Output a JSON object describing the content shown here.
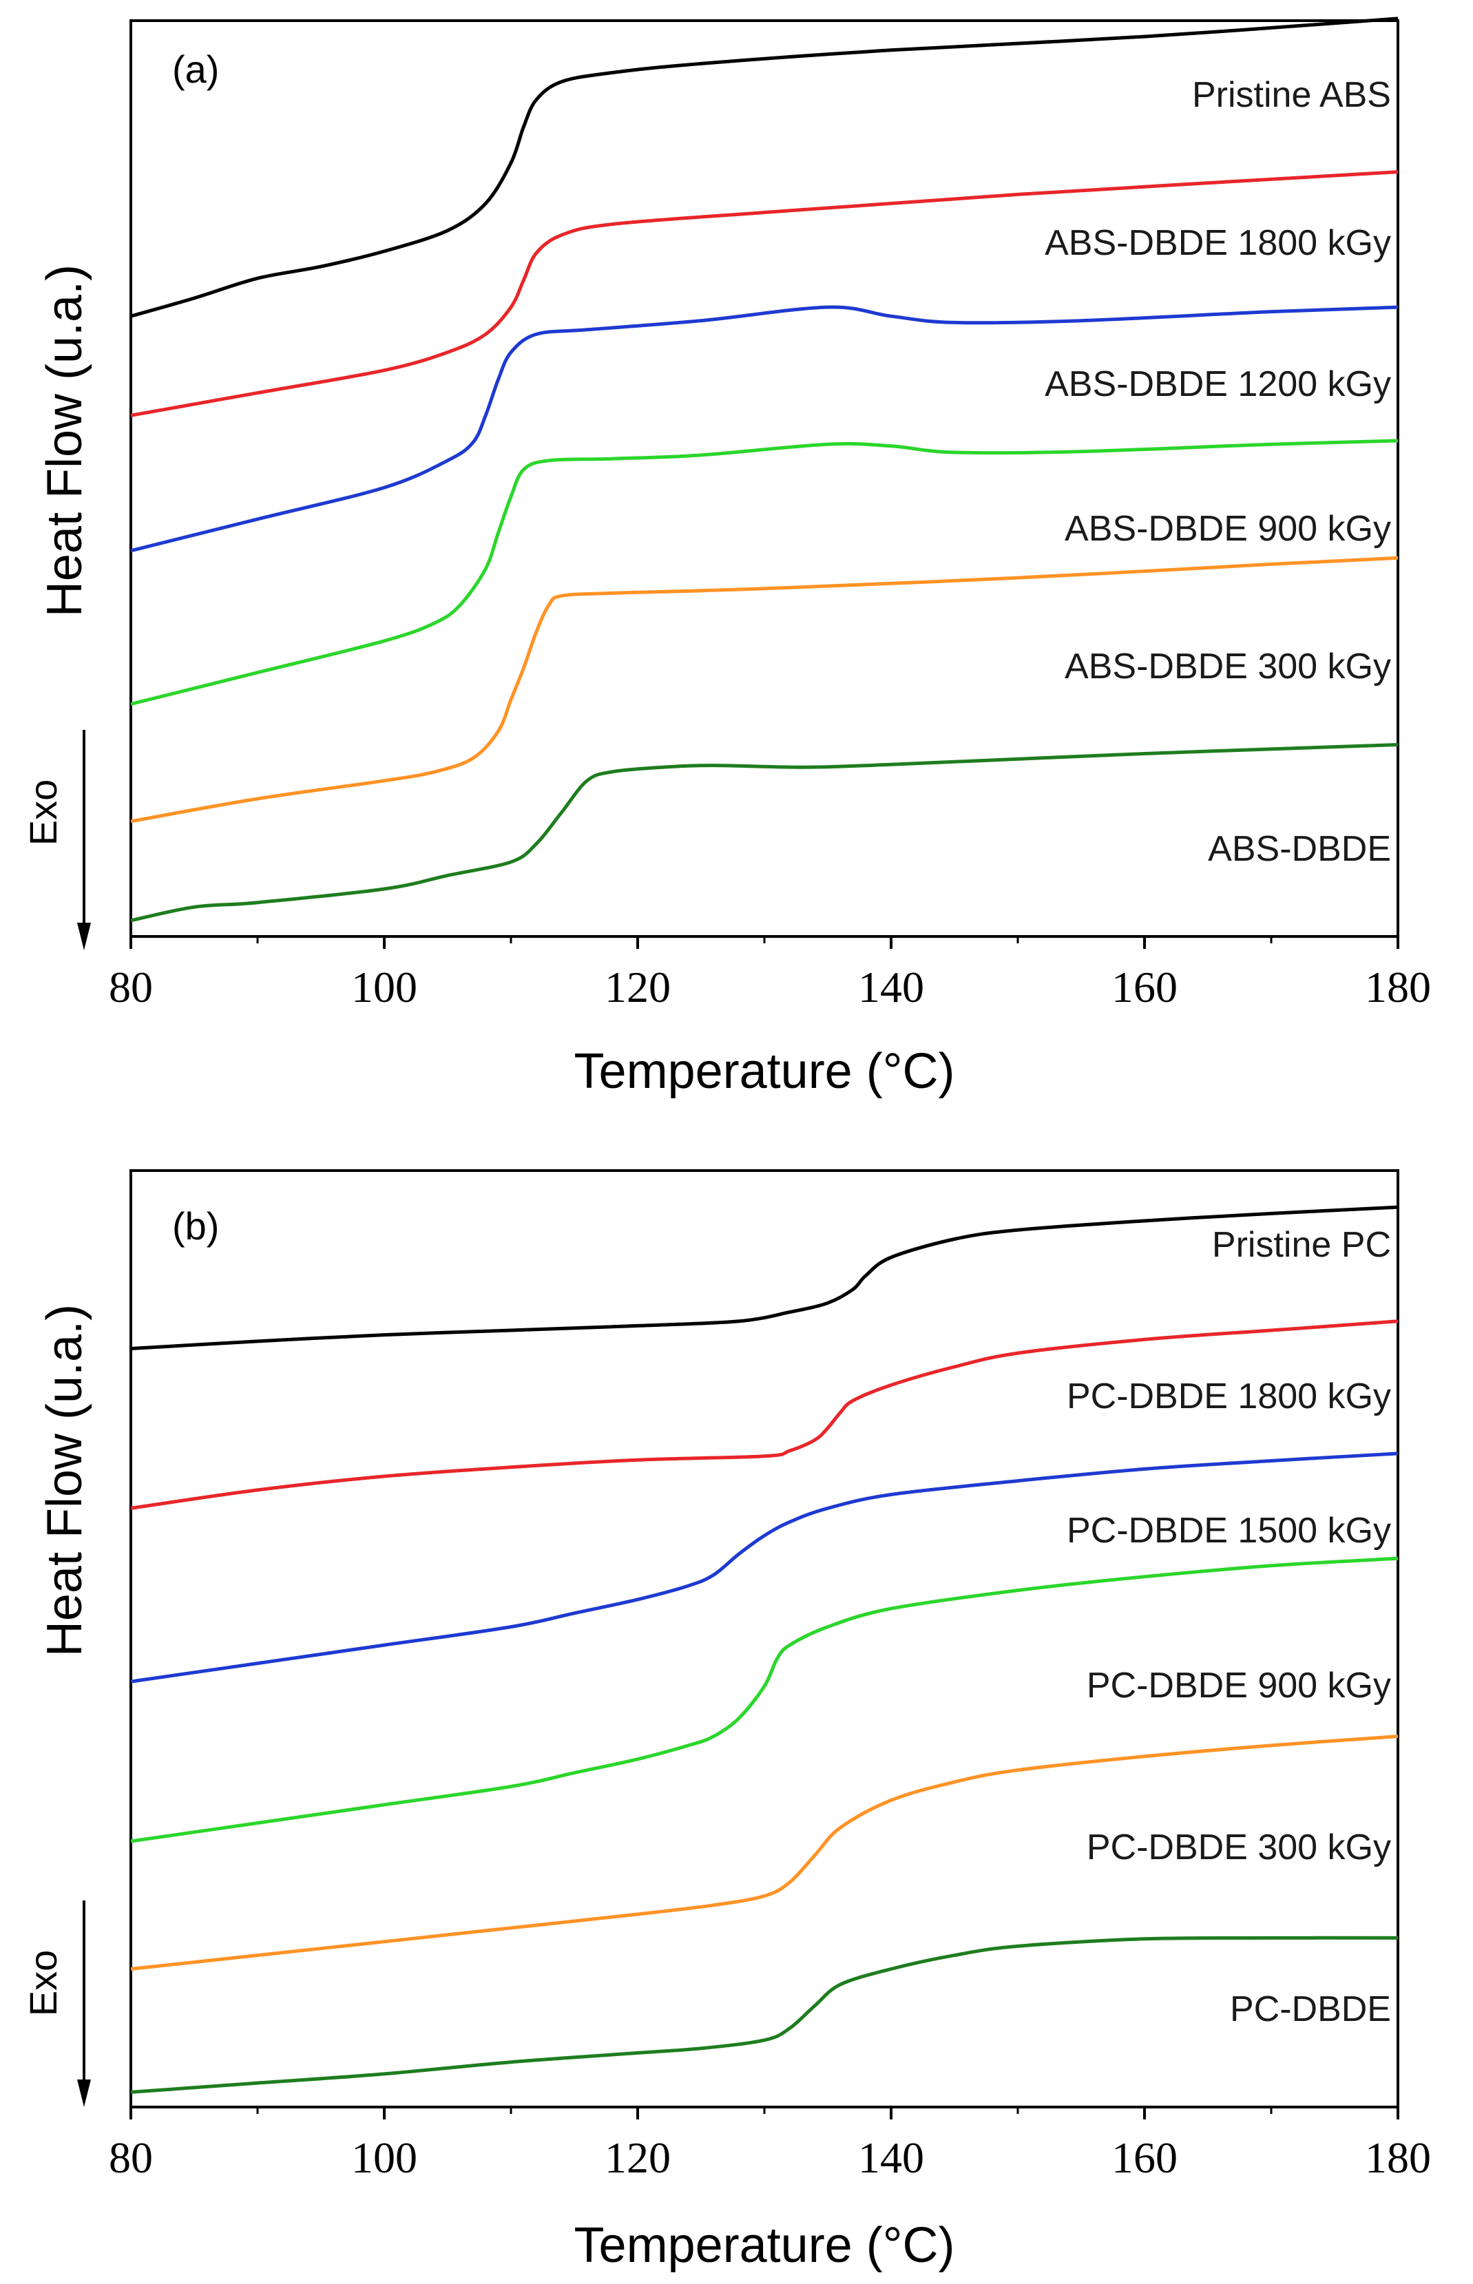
{
  "chart_data": [
    {
      "type": "line",
      "panel_label": "(a)",
      "xlabel": "Temperature (°C)",
      "ylabel": "Heat Flow (u.a.)",
      "xlim": [
        80,
        180
      ],
      "xticks": [
        80,
        100,
        120,
        140,
        160,
        180
      ],
      "ylim": [
        0,
        100
      ],
      "y_ticks_shown": false,
      "grid": false,
      "legend": "inline labels at right end of each curve",
      "exo_indicator": "Exo",
      "series": [
        {
          "name": "Pristine ABS",
          "color": "#000000",
          "points": [
            [
              80,
              68
            ],
            [
              85,
              70
            ],
            [
              90,
              72.2
            ],
            [
              95,
              73.5
            ],
            [
              100,
              75.2
            ],
            [
              105,
              77.5
            ],
            [
              108,
              80.5
            ],
            [
              110,
              85
            ],
            [
              111,
              89
            ],
            [
              112,
              92
            ],
            [
              114,
              94
            ],
            [
              118,
              95
            ],
            [
              125,
              96
            ],
            [
              140,
              97.5
            ],
            [
              160,
              99
            ],
            [
              180,
              101
            ]
          ]
        },
        {
          "name": "ABS-DBDE 1800 kGy",
          "color": "#e8262a",
          "points": [
            [
              80,
              57
            ],
            [
              90,
              59.5
            ],
            [
              100,
              62
            ],
            [
              105,
              64
            ],
            [
              108,
              66
            ],
            [
              110,
              69
            ],
            [
              111,
              72
            ],
            [
              112,
              75
            ],
            [
              114,
              77
            ],
            [
              118,
              78.2
            ],
            [
              130,
              79.5
            ],
            [
              150,
              81.5
            ],
            [
              180,
              84
            ]
          ]
        },
        {
          "name": "ABS-DBDE 1200 kGy",
          "color": "#1e3ad1",
          "points": [
            [
              80,
              42
            ],
            [
              90,
              45.5
            ],
            [
              100,
              49
            ],
            [
              105,
              52
            ],
            [
              107,
              54
            ],
            [
              108,
              57
            ],
            [
              109,
              61
            ],
            [
              110,
              64
            ],
            [
              112,
              66
            ],
            [
              116,
              66.5
            ],
            [
              125,
              67.5
            ],
            [
              135,
              69
            ],
            [
              140,
              68
            ],
            [
              145,
              67.3
            ],
            [
              155,
              67.5
            ],
            [
              170,
              68.5
            ],
            [
              180,
              69
            ]
          ]
        },
        {
          "name": "ABS-DBDE 900 kGy",
          "color": "#2bd62b",
          "points": [
            [
              80,
              25
            ],
            [
              90,
              28.5
            ],
            [
              100,
              32
            ],
            [
              104,
              34
            ],
            [
              106,
              36
            ],
            [
              108,
              40
            ],
            [
              109,
              44
            ],
            [
              110,
              48
            ],
            [
              111,
              51
            ],
            [
              113,
              52
            ],
            [
              118,
              52.2
            ],
            [
              125,
              52.6
            ],
            [
              135,
              53.8
            ],
            [
              140,
              53.6
            ],
            [
              145,
              52.9
            ],
            [
              155,
              53
            ],
            [
              170,
              53.8
            ],
            [
              180,
              54.2
            ]
          ]
        },
        {
          "name": "ABS-DBDE 300 kGy",
          "color": "#ff9326",
          "points": [
            [
              80,
              12
            ],
            [
              90,
              14.5
            ],
            [
              100,
              16.5
            ],
            [
              104,
              17.5
            ],
            [
              107,
              19
            ],
            [
              109,
              22
            ],
            [
              110,
              25.5
            ],
            [
              111,
              29
            ],
            [
              112,
              33
            ],
            [
              113,
              36
            ],
            [
              114,
              37
            ],
            [
              118,
              37.3
            ],
            [
              130,
              37.8
            ],
            [
              150,
              39
            ],
            [
              170,
              40.5
            ],
            [
              180,
              41.2
            ]
          ]
        },
        {
          "name": "ABS-DBDE",
          "color": "#1e7d1e",
          "points": [
            [
              80,
              1
            ],
            [
              85,
              2.5
            ],
            [
              90,
              3
            ],
            [
              100,
              4.5
            ],
            [
              105,
              6
            ],
            [
              110,
              7.5
            ],
            [
              112,
              9.5
            ],
            [
              114,
              13
            ],
            [
              116,
              16.5
            ],
            [
              118,
              17.5
            ],
            [
              122,
              18
            ],
            [
              126,
              18.2
            ],
            [
              133,
              18
            ],
            [
              140,
              18.3
            ],
            [
              160,
              19.5
            ],
            [
              180,
              20.5
            ]
          ]
        }
      ]
    },
    {
      "type": "line",
      "panel_label": "(b)",
      "xlabel": "Temperature (°C)",
      "ylabel": "Heat Flow (u.a.)",
      "xlim": [
        80,
        180
      ],
      "xticks": [
        80,
        100,
        120,
        140,
        160,
        180
      ],
      "ylim": [
        0,
        100
      ],
      "y_ticks_shown": false,
      "grid": false,
      "legend": "inline labels at right end of each curve",
      "exo_indicator": "Exo",
      "series": [
        {
          "name": "Pristine PC",
          "color": "#000000",
          "points": [
            [
              80,
              82
            ],
            [
              90,
              82.8
            ],
            [
              100,
              83.5
            ],
            [
              110,
              84
            ],
            [
              120,
              84.5
            ],
            [
              128,
              85
            ],
            [
              132,
              86
            ],
            [
              135,
              87
            ],
            [
              137,
              88.5
            ],
            [
              138,
              90
            ],
            [
              140,
              92
            ],
            [
              145,
              94
            ],
            [
              150,
              95
            ],
            [
              160,
              96
            ],
            [
              170,
              96.8
            ],
            [
              180,
              97.5
            ]
          ]
        },
        {
          "name": "PC-DBDE 1800 kGy",
          "color": "#e8262a",
          "points": [
            [
              80,
              64.5
            ],
            [
              90,
              66.5
            ],
            [
              100,
              68
            ],
            [
              110,
              69
            ],
            [
              120,
              69.8
            ],
            [
              130,
              70.2
            ],
            [
              132,
              70.8
            ],
            [
              134,
              72
            ],
            [
              135,
              73.3
            ],
            [
              136,
              75
            ],
            [
              137,
              76.3
            ],
            [
              140,
              78
            ],
            [
              145,
              80
            ],
            [
              150,
              81.5
            ],
            [
              160,
              83
            ],
            [
              170,
              84
            ],
            [
              180,
              85
            ]
          ]
        },
        {
          "name": "PC-DBDE 1500 kGy",
          "color": "#1e3ad1",
          "points": [
            [
              80,
              45.5
            ],
            [
              90,
              47.5
            ],
            [
              100,
              49.5
            ],
            [
              110,
              51.5
            ],
            [
              115,
              53
            ],
            [
              120,
              54.5
            ],
            [
              124,
              56
            ],
            [
              126,
              57.2
            ],
            [
              128,
              59.5
            ],
            [
              130,
              61.5
            ],
            [
              132,
              63
            ],
            [
              135,
              64.5
            ],
            [
              140,
              66
            ],
            [
              150,
              67.5
            ],
            [
              160,
              68.8
            ],
            [
              170,
              69.7
            ],
            [
              180,
              70.5
            ]
          ]
        },
        {
          "name": "PC-DBDE 900 kGy",
          "color": "#2bd62b",
          "points": [
            [
              80,
              28
            ],
            [
              90,
              30
            ],
            [
              100,
              32
            ],
            [
              110,
              34
            ],
            [
              115,
              35.5
            ],
            [
              120,
              37
            ],
            [
              124,
              38.5
            ],
            [
              126,
              39.5
            ],
            [
              128,
              41.5
            ],
            [
              130,
              45
            ],
            [
              131,
              48
            ],
            [
              132,
              49.5
            ],
            [
              135,
              51.5
            ],
            [
              140,
              53.5
            ],
            [
              150,
              55.5
            ],
            [
              160,
              57
            ],
            [
              170,
              58.2
            ],
            [
              180,
              59
            ]
          ]
        },
        {
          "name": "PC-DBDE 300 kGy",
          "color": "#ff9326",
          "points": [
            [
              80,
              14
            ],
            [
              90,
              15.5
            ],
            [
              100,
              17
            ],
            [
              110,
              18.5
            ],
            [
              120,
              20
            ],
            [
              126,
              21
            ],
            [
              130,
              22
            ],
            [
              132,
              23.5
            ],
            [
              134,
              26.5
            ],
            [
              136,
              29.5
            ],
            [
              140,
              32.5
            ],
            [
              145,
              34.5
            ],
            [
              150,
              35.8
            ],
            [
              160,
              37.3
            ],
            [
              170,
              38.5
            ],
            [
              180,
              39.5
            ]
          ]
        },
        {
          "name": "PC-DBDE",
          "color": "#1e7d1e",
          "points": [
            [
              80,
              0.5
            ],
            [
              90,
              1.5
            ],
            [
              100,
              2.5
            ],
            [
              110,
              3.8
            ],
            [
              120,
              4.8
            ],
            [
              125,
              5.3
            ],
            [
              130,
              6.2
            ],
            [
              132,
              7.5
            ],
            [
              134,
              10
            ],
            [
              136,
              12.3
            ],
            [
              140,
              14
            ],
            [
              145,
              15.5
            ],
            [
              150,
              16.5
            ],
            [
              160,
              17.3
            ],
            [
              170,
              17.4
            ],
            [
              180,
              17.4
            ]
          ]
        }
      ]
    }
  ]
}
